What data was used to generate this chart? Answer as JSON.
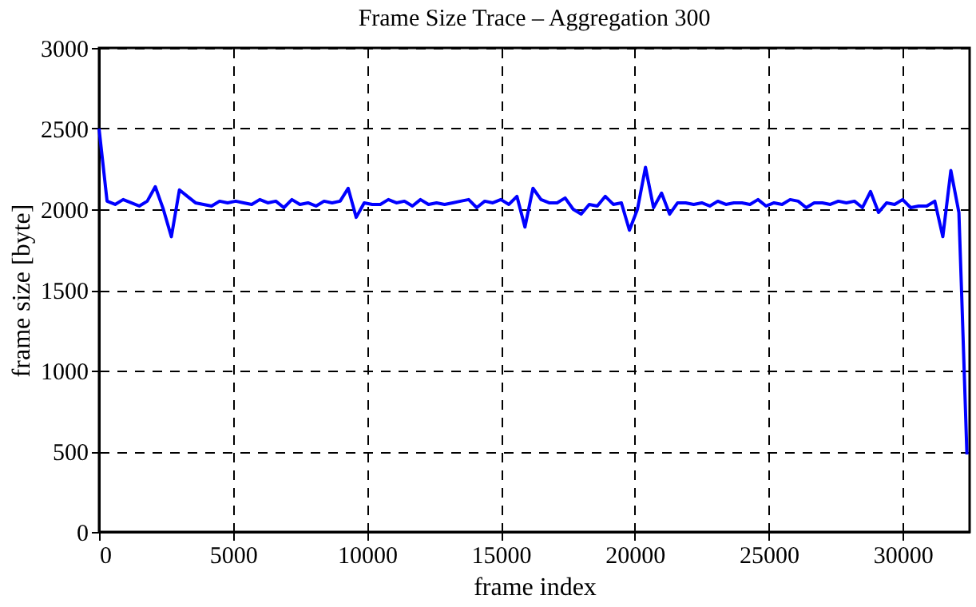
{
  "chart_data": {
    "type": "line",
    "title": "Frame Size Trace – Aggregation 300",
    "xlabel": "frame index",
    "ylabel": "frame size [byte]",
    "x": [
      0,
      300,
      600,
      900,
      1200,
      1500,
      1800,
      2100,
      2400,
      2700,
      3000,
      3300,
      3600,
      3900,
      4200,
      4500,
      4800,
      5100,
      5400,
      5700,
      6000,
      6300,
      6600,
      6900,
      7200,
      7500,
      7800,
      8100,
      8400,
      8700,
      9000,
      9300,
      9600,
      9900,
      10200,
      10500,
      10800,
      11100,
      11400,
      11700,
      12000,
      12300,
      12600,
      12900,
      13200,
      13500,
      13800,
      14100,
      14400,
      14700,
      15000,
      15300,
      15600,
      15900,
      16200,
      16500,
      16800,
      17100,
      17400,
      17700,
      18000,
      18300,
      18600,
      18900,
      19200,
      19500,
      19800,
      20100,
      20400,
      20700,
      21000,
      21300,
      21600,
      21900,
      22200,
      22500,
      22800,
      23100,
      23400,
      23700,
      24000,
      24300,
      24600,
      24900,
      25200,
      25500,
      25800,
      26100,
      26400,
      26700,
      27000,
      27300,
      27600,
      27900,
      28200,
      28500,
      28800,
      29100,
      29400,
      29700,
      30000,
      30300,
      30600,
      30900,
      31200,
      31500,
      31800,
      32100,
      32200,
      32400
    ],
    "series": [
      {
        "color": "#0000ff",
        "values": [
          2500,
          2050,
          2030,
          2060,
          2040,
          2020,
          2050,
          2140,
          2000,
          1830,
          2120,
          2080,
          2040,
          2030,
          2020,
          2050,
          2040,
          2050,
          2040,
          2030,
          2060,
          2040,
          2050,
          2010,
          2060,
          2030,
          2040,
          2020,
          2050,
          2040,
          2050,
          2130,
          1950,
          2040,
          2030,
          2030,
          2060,
          2040,
          2050,
          2020,
          2060,
          2030,
          2040,
          2030,
          2040,
          2050,
          2060,
          2010,
          2050,
          2040,
          2060,
          2030,
          2080,
          1890,
          2130,
          2060,
          2040,
          2040,
          2070,
          2000,
          1970,
          2030,
          2020,
          2080,
          2030,
          2040,
          1870,
          2000,
          2260,
          2010,
          2100,
          1970,
          2040,
          2040,
          2030,
          2040,
          2020,
          2050,
          2030,
          2040,
          2040,
          2030,
          2060,
          2020,
          2040,
          2030,
          2060,
          2050,
          2010,
          2040,
          2040,
          2030,
          2050,
          2040,
          2050,
          2010,
          2110,
          1980,
          2040,
          2030,
          2060,
          2010,
          2020,
          2020,
          2050,
          1830,
          2240,
          1980,
          1490,
          480
        ]
      }
    ],
    "xlim": [
      0,
      32500
    ],
    "xticks": [
      0,
      5000,
      10000,
      15000,
      20000,
      25000,
      30000
    ],
    "ylim": [
      0,
      3000
    ],
    "yticks": [
      0,
      500,
      1000,
      1500,
      2000,
      2500,
      3000
    ],
    "grid": true,
    "marker": "none",
    "line_style": "solid"
  }
}
